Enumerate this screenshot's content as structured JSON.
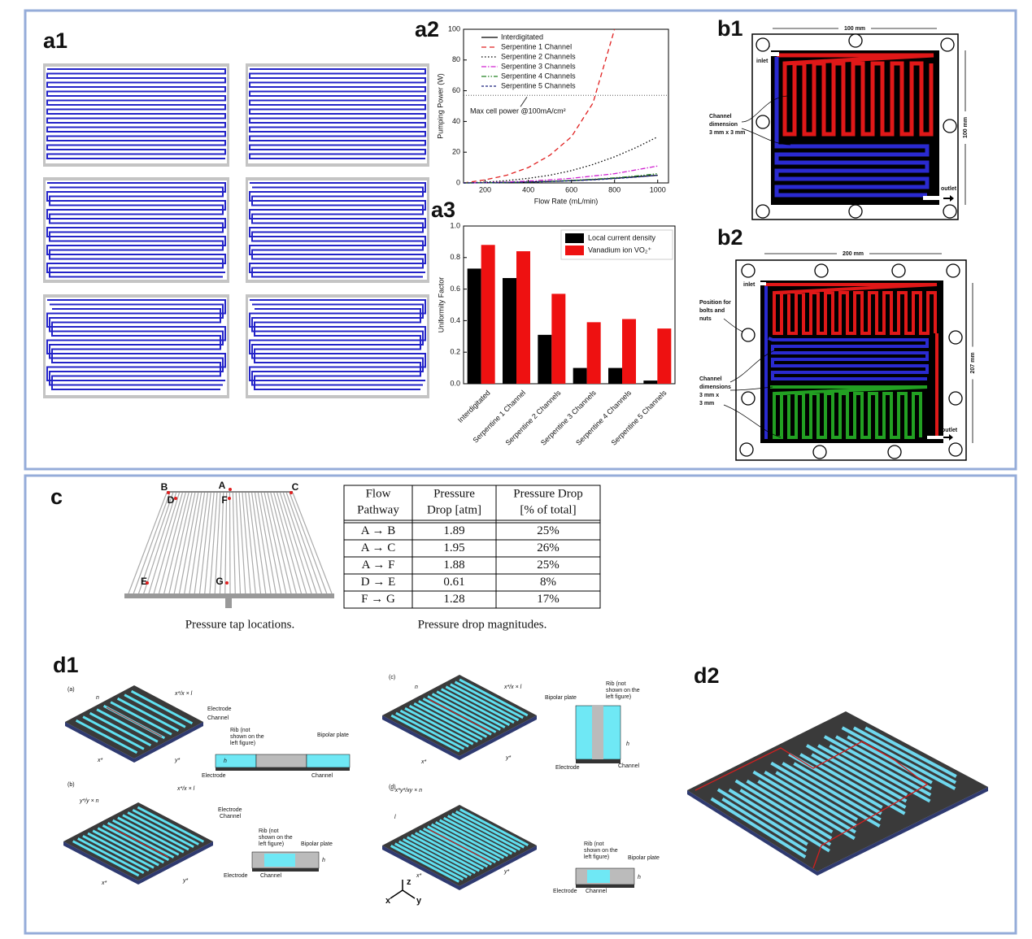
{
  "labels": [
    "a1",
    "a2",
    "a3",
    "b1",
    "b2",
    "c",
    "d1",
    "d2"
  ],
  "chart_data": [
    {
      "type": "line",
      "y_label": "Pumping Power (W)",
      "x_label": "Flow Rate (mL/min)",
      "x": [
        100,
        200,
        300,
        400,
        500,
        600,
        700,
        800,
        900,
        1000
      ],
      "xlim": [
        100,
        1050
      ],
      "xticks": [
        200,
        400,
        600,
        800,
        1000
      ],
      "ylim": [
        0,
        100
      ],
      "yticks": [
        0,
        20,
        40,
        60,
        80,
        100
      ],
      "legend": "upper left",
      "annotation": {
        "text": "Max cell power @100mA/cm²",
        "value": 57
      },
      "series": [
        {
          "name": "Interdigitated",
          "color": "#000000",
          "dash": "none",
          "values": [
            0,
            0.1,
            0.3,
            0.6,
            1,
            1.5,
            2.2,
            3,
            4,
            5
          ]
        },
        {
          "name": "Serpentine 1 Channel",
          "color": "#e02020",
          "dash": "6,4",
          "values": [
            0,
            2,
            5,
            10,
            18,
            30,
            52,
            100,
            null,
            null
          ]
        },
        {
          "name": "Serpentine 2 Channels",
          "color": "#000000",
          "dash": "1.5,2.5",
          "values": [
            0,
            0.5,
            1.5,
            3,
            5,
            8,
            12,
            17,
            23,
            30
          ]
        },
        {
          "name": "Serpentine 3 Channels",
          "color": "#d020d0",
          "dash": "6,2,1.5,2",
          "values": [
            0,
            0.2,
            0.6,
            1.2,
            2,
            3,
            4.5,
            6,
            8.5,
            11
          ]
        },
        {
          "name": "Serpentine 4 Channels",
          "color": "#208020",
          "dash": "6,2,1.5,2,1.5,2",
          "values": [
            0,
            0.1,
            0.3,
            0.6,
            1,
            1.6,
            2.4,
            3.3,
            4.5,
            6
          ]
        },
        {
          "name": "Serpentine 5 Channels",
          "color": "#1a237e",
          "dash": "3,2",
          "values": [
            0,
            0.1,
            0.3,
            0.5,
            0.9,
            1.4,
            2,
            2.8,
            3.8,
            5
          ]
        }
      ]
    },
    {
      "type": "bar",
      "y_label": "Uniformity Factor",
      "categories": [
        "Interdigitated",
        "Serpentine 1 Channel",
        "Serpentine 2 Channels",
        "Serpentine 3 Channels",
        "Serpentine 4 Channels",
        "Serpentine 5 Channels"
      ],
      "ylim": [
        0,
        1
      ],
      "yticks": [
        {
          "value": 0,
          "label": "0.0"
        },
        0.2,
        0.4,
        0.6,
        0.8,
        {
          "value": 1,
          "label": "1.0"
        }
      ],
      "legend": "upper right",
      "series": [
        {
          "name": "Local current density",
          "color": "#000000",
          "values": [
            0.73,
            0.67,
            0.31,
            0.1,
            0.1,
            0.02
          ]
        },
        {
          "name": "Vanadium ion VO₂⁺",
          "color": "#ee1111",
          "values": [
            0.88,
            0.84,
            0.57,
            0.39,
            0.41,
            0.35
          ]
        }
      ]
    }
  ],
  "b1": {
    "width": "100 mm",
    "height": "100 mm",
    "inlet": "inlet",
    "outlet": "outlet",
    "channel": [
      "Channel",
      "dimension",
      "3 mm x 3 mm"
    ]
  },
  "b2": {
    "width": "200 mm",
    "height": "207 mm",
    "inlet": "inlet",
    "outlet": "outlet",
    "bolts": [
      "Position for",
      "bolts and",
      "nuts"
    ],
    "channel": [
      "Channel",
      "dimensions",
      "3 mm x",
      "3 mm"
    ]
  },
  "c": {
    "taps": [
      "A",
      "B",
      "C",
      "D",
      "E",
      "F",
      "G"
    ],
    "diagram_caption": "Pressure tap locations.",
    "table": {
      "header": [
        [
          "Flow",
          "Pathway"
        ],
        [
          "Pressure",
          "Drop [atm]"
        ],
        [
          "Pressure Drop",
          "[% of total]"
        ]
      ],
      "rows": [
        [
          "A → B",
          "1.89",
          "25%"
        ],
        [
          "A → C",
          "1.95",
          "26%"
        ],
        [
          "A → F",
          "1.88",
          "25%"
        ],
        [
          "D → E",
          "0.61",
          "8%"
        ],
        [
          "F → G",
          "1.28",
          "17%"
        ]
      ]
    },
    "table_caption": "Pressure drop magnitudes."
  },
  "d1": {
    "subfigures": [
      "(a)",
      "(b)",
      "(c)",
      "(d)"
    ],
    "electrode": "Electrode",
    "channel": "Channel",
    "bipolar_plate": "Bipolar plate",
    "rib": [
      "Rib (not",
      "shown on the",
      "left figure)"
    ],
    "x_star": "x*",
    "y_star": "y*",
    "h": "h",
    "n": "n",
    "l": "l",
    "scale_x": "x*/x × l",
    "scale_y": "y*/y × n",
    "scale_xy": "≈ x*y*/xy × n",
    "axes": [
      "x",
      "y",
      "z"
    ]
  }
}
